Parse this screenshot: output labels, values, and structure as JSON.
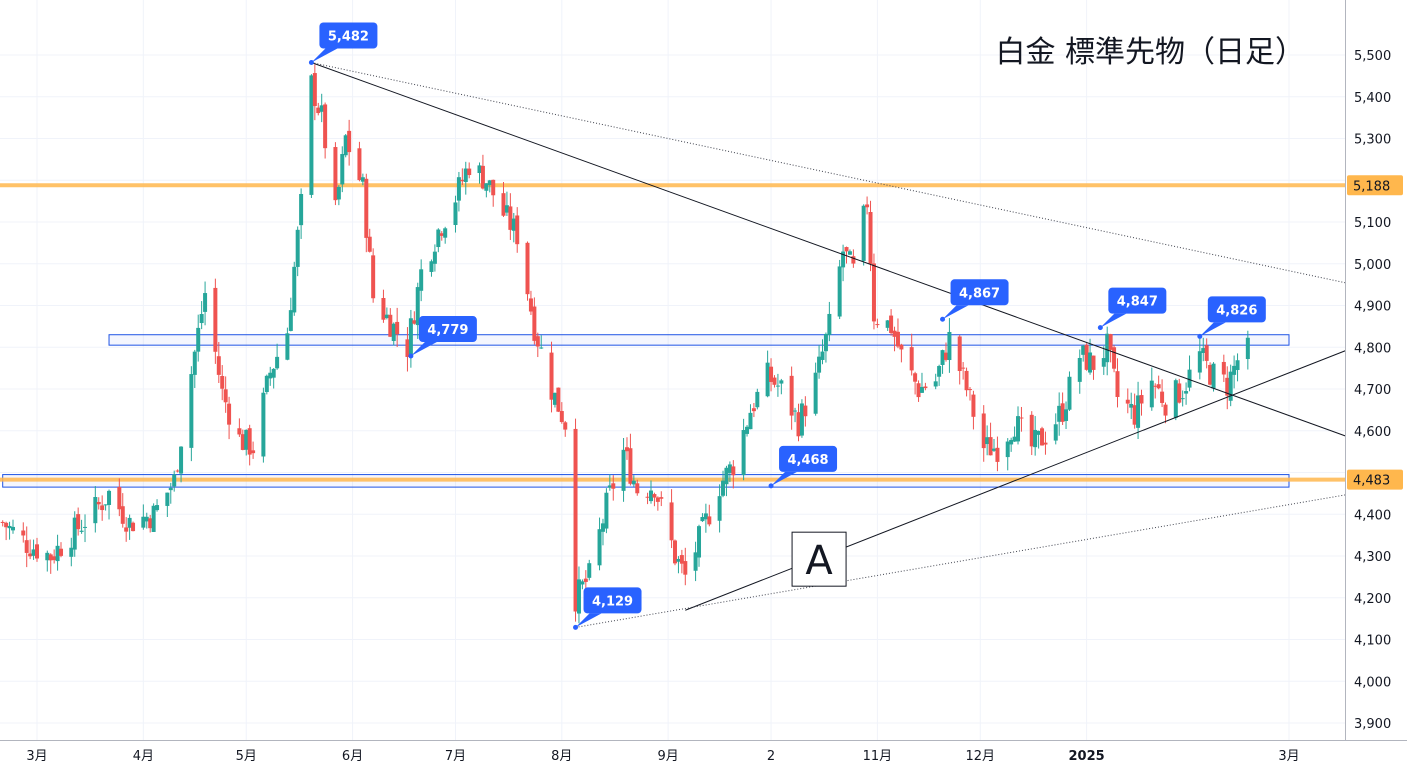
{
  "chart_data": {
    "type": "candlestick",
    "title": "白金 標準先物（日足）",
    "ylim": [
      3850,
      5580
    ],
    "y_ticks": [
      3900,
      4000,
      4100,
      4200,
      4300,
      4400,
      4500,
      4600,
      4700,
      4800,
      4900,
      5000,
      5100,
      5200,
      5300,
      5400,
      5500
    ],
    "y_tick_labels": [
      "3,900",
      "4,000",
      "4,100",
      "4,200",
      "4,300",
      "4,400",
      "",
      "4,600",
      "4,700",
      "4,800",
      "4,900",
      "5,000",
      "5,100",
      "",
      "5,300",
      "5,400",
      "5,500"
    ],
    "x_ticks": [
      {
        "label": "3月",
        "date": "2024-03-01",
        "bold": false
      },
      {
        "label": "4月",
        "date": "2024-04-01",
        "bold": false
      },
      {
        "label": "5月",
        "date": "2024-05-01",
        "bold": false
      },
      {
        "label": "6月",
        "date": "2024-06-01",
        "bold": false
      },
      {
        "label": "7月",
        "date": "2024-07-01",
        "bold": false
      },
      {
        "label": "8月",
        "date": "2024-08-01",
        "bold": false
      },
      {
        "label": "9月",
        "date": "2024-09-01",
        "bold": false
      },
      {
        "label": "2",
        "date": "2024-10-01",
        "bold": false
      },
      {
        "label": "11月",
        "date": "2024-11-01",
        "bold": false
      },
      {
        "label": "12月",
        "date": "2024-12-01",
        "bold": false
      },
      {
        "label": "2025",
        "date": "2025-01-01",
        "bold": true
      },
      {
        "label": "3月",
        "date": "2025-03-01",
        "bold": false
      }
    ],
    "close_path": [
      [
        "2024-02-20",
        4380
      ],
      [
        "2024-02-27",
        4330
      ],
      [
        "2024-03-05",
        4300
      ],
      [
        "2024-03-12",
        4360
      ],
      [
        "2024-03-19",
        4420
      ],
      [
        "2024-03-22",
        4450
      ],
      [
        "2024-03-28",
        4380
      ],
      [
        "2024-04-04",
        4400
      ],
      [
        "2024-04-10",
        4480
      ],
      [
        "2024-04-15",
        4740
      ],
      [
        "2024-04-19",
        4930
      ],
      [
        "2024-04-24",
        4690
      ],
      [
        "2024-04-29",
        4580
      ],
      [
        "2024-05-03",
        4560
      ],
      [
        "2024-05-08",
        4740
      ],
      [
        "2024-05-13",
        4840
      ],
      [
        "2024-05-17",
        5140
      ],
      [
        "2024-05-20",
        5430
      ],
      [
        "2024-05-23",
        5350
      ],
      [
        "2024-05-27",
        5120
      ],
      [
        "2024-05-30",
        5300
      ],
      [
        "2024-06-04",
        5180
      ],
      [
        "2024-06-07",
        4920
      ],
      [
        "2024-06-12",
        4860
      ],
      [
        "2024-06-17",
        4800
      ],
      [
        "2024-06-21",
        4980
      ],
      [
        "2024-06-26",
        5080
      ],
      [
        "2024-07-01",
        5160
      ],
      [
        "2024-07-05",
        5240
      ],
      [
        "2024-07-10",
        5200
      ],
      [
        "2024-07-15",
        5120
      ],
      [
        "2024-07-19",
        5070
      ],
      [
        "2024-07-24",
        4850
      ],
      [
        "2024-07-29",
        4700
      ],
      [
        "2024-08-02",
        4620
      ],
      [
        "2024-08-05",
        4200
      ],
      [
        "2024-08-09",
        4250
      ],
      [
        "2024-08-14",
        4420
      ],
      [
        "2024-08-19",
        4550
      ],
      [
        "2024-08-23",
        4460
      ],
      [
        "2024-08-28",
        4470
      ],
      [
        "2024-09-03",
        4300
      ],
      [
        "2024-09-06",
        4250
      ],
      [
        "2024-09-11",
        4360
      ],
      [
        "2024-09-16",
        4470
      ],
      [
        "2024-09-20",
        4520
      ],
      [
        "2024-09-25",
        4650
      ],
      [
        "2024-09-30",
        4730
      ],
      [
        "2024-10-04",
        4700
      ],
      [
        "2024-10-09",
        4620
      ],
      [
        "2024-10-14",
        4720
      ],
      [
        "2024-10-18",
        4850
      ],
      [
        "2024-10-22",
        5030
      ],
      [
        "2024-10-25",
        4980
      ],
      [
        "2024-10-29",
        5150
      ],
      [
        "2024-10-31",
        4880
      ],
      [
        "2024-11-05",
        4850
      ],
      [
        "2024-11-08",
        4780
      ],
      [
        "2024-11-13",
        4700
      ],
      [
        "2024-11-18",
        4720
      ],
      [
        "2024-11-22",
        4820
      ],
      [
        "2024-11-27",
        4700
      ],
      [
        "2024-12-02",
        4560
      ],
      [
        "2024-12-06",
        4560
      ],
      [
        "2024-12-11",
        4620
      ],
      [
        "2024-12-16",
        4560
      ],
      [
        "2024-12-20",
        4590
      ],
      [
        "2024-12-25",
        4650
      ],
      [
        "2024-12-30",
        4780
      ],
      [
        "2025-01-03",
        4760
      ],
      [
        "2025-01-07",
        4800
      ],
      [
        "2025-01-10",
        4680
      ],
      [
        "2025-01-15",
        4640
      ],
      [
        "2025-01-20",
        4720
      ],
      [
        "2025-01-24",
        4670
      ],
      [
        "2025-01-29",
        4700
      ],
      [
        "2025-02-03",
        4780
      ],
      [
        "2025-02-06",
        4740
      ],
      [
        "2025-02-11",
        4710
      ],
      [
        "2025-02-14",
        4770
      ],
      [
        "2025-02-17",
        4790
      ]
    ],
    "horizontal_levels": [
      {
        "value": 5188,
        "label": "5,188",
        "color": "#ffb74d"
      },
      {
        "value": 4483,
        "label": "4,483",
        "color": "#ffb74d"
      }
    ],
    "zones": [
      {
        "from_date": "2024-03-22",
        "to_date": "2025-03-01",
        "low": 4805,
        "high": 4830,
        "color": "#1e53e5"
      },
      {
        "from_date": "2024-02-20",
        "to_date": "2025-03-01",
        "low": 4465,
        "high": 4495,
        "color": "#1e53e5"
      }
    ],
    "trendlines": [
      {
        "style": "solid",
        "points": [
          [
            "2024-05-20",
            5482
          ],
          [
            "2025-03-20",
            4580
          ]
        ]
      },
      {
        "style": "solid",
        "points": [
          [
            "2024-09-06",
            4170
          ],
          [
            "2025-03-20",
            4800
          ]
        ]
      },
      {
        "style": "dotted",
        "points": [
          [
            "2024-05-20",
            5482
          ],
          [
            "2025-03-20",
            4950
          ]
        ]
      },
      {
        "style": "dotted",
        "points": [
          [
            "2024-08-05",
            4129
          ],
          [
            "2025-03-20",
            4450
          ]
        ]
      }
    ],
    "callouts": [
      {
        "label": "5,482",
        "date": "2024-05-20",
        "value": 5482
      },
      {
        "label": "4,779",
        "date": "2024-06-18",
        "value": 4779
      },
      {
        "label": "4,129",
        "date": "2024-08-05",
        "value": 4129
      },
      {
        "label": "4,468",
        "date": "2024-10-01",
        "value": 4468
      },
      {
        "label": "4,867",
        "date": "2024-11-20",
        "value": 4867
      },
      {
        "label": "4,847",
        "date": "2025-01-05",
        "value": 4847
      },
      {
        "label": "4,826",
        "date": "2025-02-03",
        "value": 4826
      }
    ],
    "annotation": {
      "text": "A",
      "date": "2024-10-15",
      "value": 4290
    },
    "colors": {
      "up": "#26a69a",
      "down": "#ef5350",
      "callout": "#2962ff",
      "level": "#ffb74d"
    }
  }
}
